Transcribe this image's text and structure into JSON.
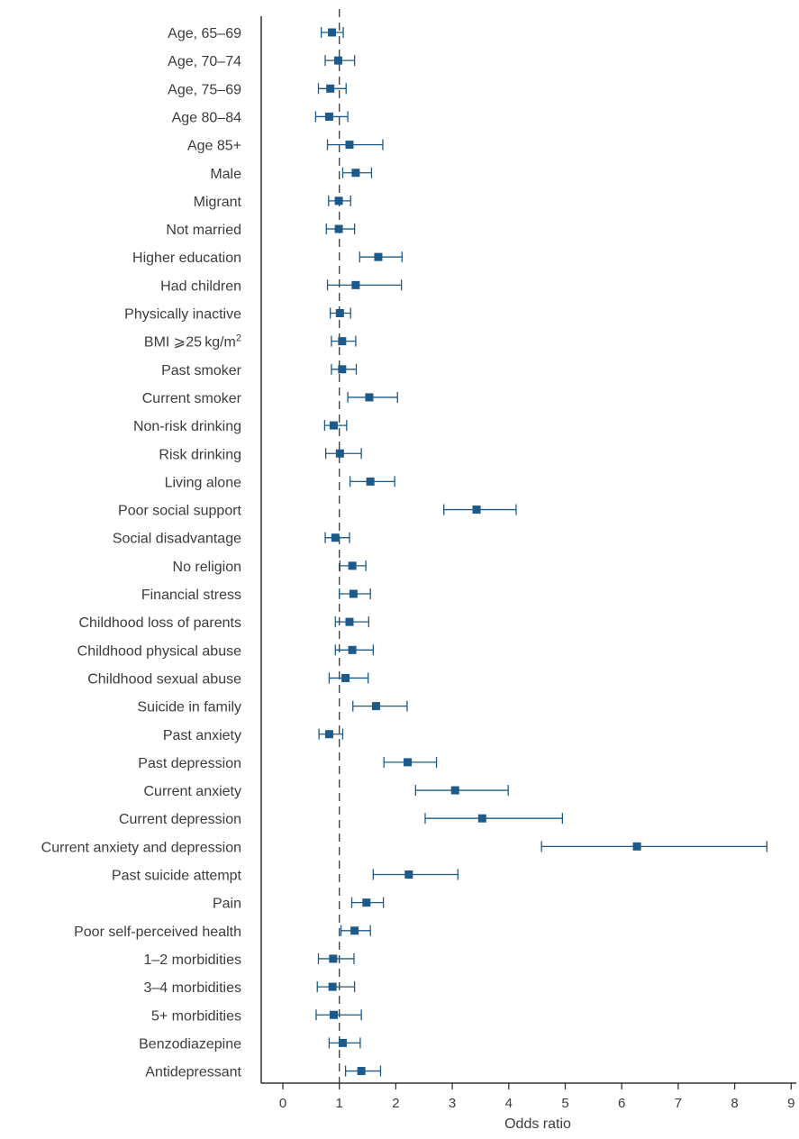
{
  "chart_data": {
    "type": "forest",
    "title": "",
    "xlabel": "Odds ratio",
    "ylabel": "",
    "xlim": [
      0,
      9
    ],
    "xticks": [
      0,
      1,
      2,
      3,
      4,
      5,
      6,
      7,
      8,
      9
    ],
    "reference_line": 1,
    "grid": false,
    "marker_color": "#1b5a8a",
    "line_color": "#1b5a8a",
    "rows": [
      {
        "label": "Age, 65–69",
        "or": 0.87,
        "lo": 0.68,
        "hi": 1.07
      },
      {
        "label": "Age, 70–74",
        "or": 0.98,
        "lo": 0.75,
        "hi": 1.27
      },
      {
        "label": "Age, 75–69",
        "or": 0.84,
        "lo": 0.63,
        "hi": 1.12
      },
      {
        "label": "Age 80–84",
        "or": 0.82,
        "lo": 0.58,
        "hi": 1.15
      },
      {
        "label": "Age 85+",
        "or": 1.18,
        "lo": 0.79,
        "hi": 1.77
      },
      {
        "label": "Male",
        "or": 1.29,
        "lo": 1.06,
        "hi": 1.57
      },
      {
        "label": "Migrant",
        "or": 0.99,
        "lo": 0.81,
        "hi": 1.2
      },
      {
        "label": "Not married",
        "or": 0.99,
        "lo": 0.77,
        "hi": 1.27
      },
      {
        "label": "Higher education",
        "or": 1.69,
        "lo": 1.36,
        "hi": 2.11
      },
      {
        "label": "Had children",
        "or": 1.29,
        "lo": 0.79,
        "hi": 2.1
      },
      {
        "label": "Physically inactive",
        "or": 1.01,
        "lo": 0.84,
        "hi": 1.2
      },
      {
        "label": "BMI ⩾25 kg/m",
        "label_sup": "2",
        "or": 1.05,
        "lo": 0.86,
        "hi": 1.29
      },
      {
        "label": "Past smoker",
        "or": 1.05,
        "lo": 0.86,
        "hi": 1.3
      },
      {
        "label": "Current smoker",
        "or": 1.53,
        "lo": 1.15,
        "hi": 2.03
      },
      {
        "label": "Non-risk drinking",
        "or": 0.9,
        "lo": 0.74,
        "hi": 1.13
      },
      {
        "label": "Risk drinking",
        "or": 1.01,
        "lo": 0.76,
        "hi": 1.39
      },
      {
        "label": "Living alone",
        "or": 1.55,
        "lo": 1.19,
        "hi": 1.98
      },
      {
        "label": "Poor social support",
        "or": 3.43,
        "lo": 2.85,
        "hi": 4.13
      },
      {
        "label": "Social disadvantage",
        "or": 0.93,
        "lo": 0.75,
        "hi": 1.18
      },
      {
        "label": "No religion",
        "or": 1.23,
        "lo": 1.01,
        "hi": 1.47
      },
      {
        "label": "Financial stress",
        "or": 1.25,
        "lo": 1.0,
        "hi": 1.55
      },
      {
        "label": "Childhood loss of parents",
        "or": 1.18,
        "lo": 0.93,
        "hi": 1.52
      },
      {
        "label": "Childhood physical abuse",
        "or": 1.23,
        "lo": 0.93,
        "hi": 1.6
      },
      {
        "label": "Childhood sexual abuse",
        "or": 1.11,
        "lo": 0.82,
        "hi": 1.51
      },
      {
        "label": "Suicide in family",
        "or": 1.65,
        "lo": 1.24,
        "hi": 2.2
      },
      {
        "label": "Past anxiety",
        "or": 0.82,
        "lo": 0.64,
        "hi": 1.06
      },
      {
        "label": "Past depression",
        "or": 2.21,
        "lo": 1.79,
        "hi": 2.72
      },
      {
        "label": "Current anxiety",
        "or": 3.05,
        "lo": 2.35,
        "hi": 3.99
      },
      {
        "label": "Current depression",
        "or": 3.53,
        "lo": 2.52,
        "hi": 4.95
      },
      {
        "label": "Current anxiety and depression",
        "or": 6.27,
        "lo": 4.58,
        "hi": 8.57
      },
      {
        "label": "Past suicide attempt",
        "or": 2.23,
        "lo": 1.6,
        "hi": 3.1
      },
      {
        "label": "Pain",
        "or": 1.48,
        "lo": 1.22,
        "hi": 1.78
      },
      {
        "label": "Poor self-perceived health",
        "or": 1.27,
        "lo": 1.03,
        "hi": 1.55
      },
      {
        "label": "1–2 morbidities",
        "or": 0.89,
        "lo": 0.63,
        "hi": 1.26
      },
      {
        "label": "3–4 morbidities",
        "or": 0.88,
        "lo": 0.61,
        "hi": 1.27
      },
      {
        "label": "5+ morbidities",
        "or": 0.9,
        "lo": 0.59,
        "hi": 1.39
      },
      {
        "label": "Benzodiazepine",
        "or": 1.06,
        "lo": 0.82,
        "hi": 1.37
      },
      {
        "label": "Antidepressant",
        "or": 1.39,
        "lo": 1.11,
        "hi": 1.73
      }
    ]
  }
}
